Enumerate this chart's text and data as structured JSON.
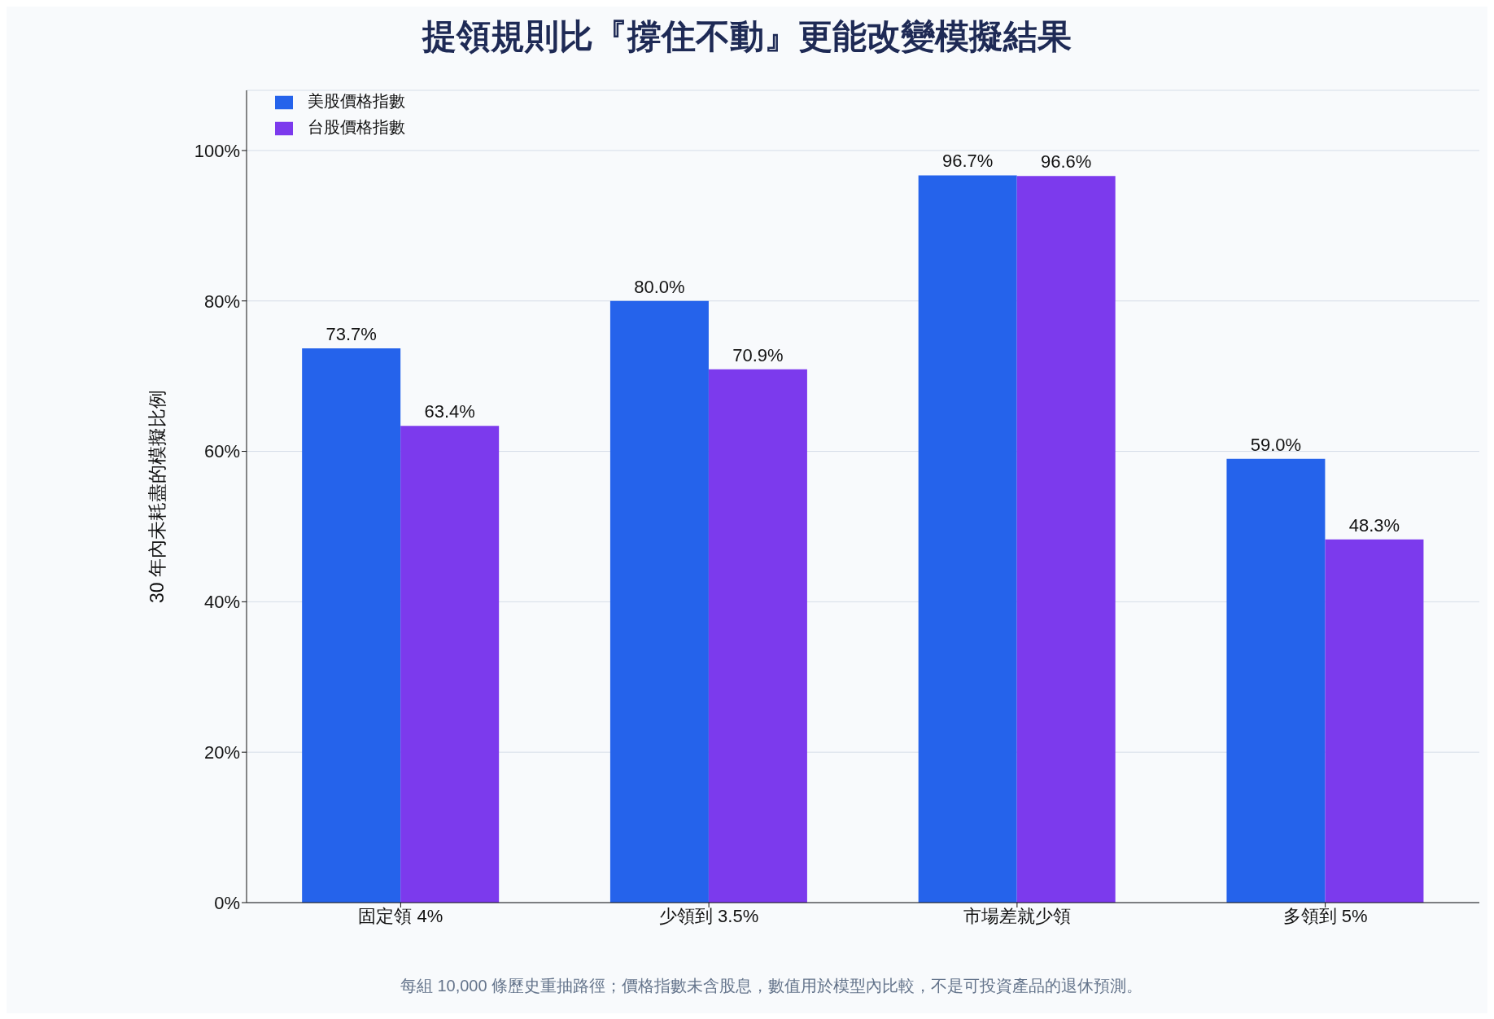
{
  "chart_data": {
    "type": "bar",
    "title": "提領規則比『撐住不動』更能改變模擬結果",
    "ylabel": "30 年內未耗盡的模擬比例",
    "categories": [
      "固定領 4%",
      "少領到 3.5%",
      "市場差就少領",
      "多領到 5%"
    ],
    "series": [
      {
        "name": "美股價格指數",
        "color": "#2563eb",
        "values": [
          73.7,
          80.0,
          96.7,
          59.0
        ],
        "value_labels": [
          "73.7%",
          "80.0%",
          "96.7%",
          "59.0%"
        ]
      },
      {
        "name": "台股價格指數",
        "color": "#7c3aed",
        "values": [
          63.4,
          70.9,
          96.6,
          48.3
        ],
        "value_labels": [
          "63.4%",
          "70.9%",
          "96.6%",
          "48.3%"
        ]
      }
    ],
    "ylim": [
      0,
      108
    ],
    "yticks": [
      {
        "value": 0,
        "label": "0%"
      },
      {
        "value": 20,
        "label": "20%"
      },
      {
        "value": 40,
        "label": "40%"
      },
      {
        "value": 60,
        "label": "60%"
      },
      {
        "value": 80,
        "label": "80%"
      },
      {
        "value": 100,
        "label": "100%"
      }
    ],
    "grid": "y",
    "legend": "top left",
    "annotations": [
      "每組 10,000 條歷史重抽路徑；價格指數未含股息，數值用於模型內比較，不是可投資產品的退休預測。"
    ]
  }
}
